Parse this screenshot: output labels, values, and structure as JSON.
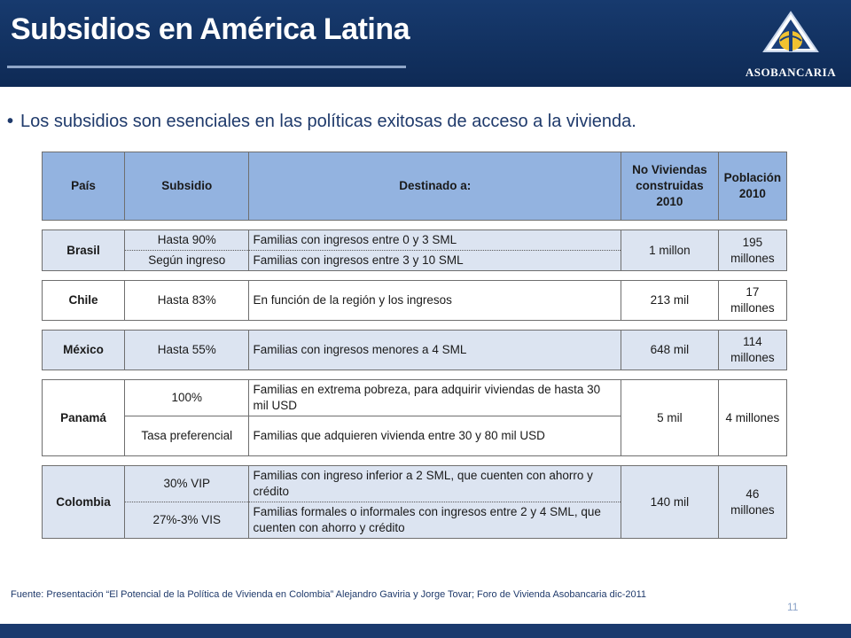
{
  "slide": {
    "title": "Subsidios en América Latina",
    "bullet": "Los subsidios son esenciales en las políticas exitosas de acceso a la vivienda.",
    "logo_text": "ASOBANCARIA",
    "source": "Fuente: Presentación “El Potencial de la Política de Vivienda en Colombia” Alejandro Gaviria y Jorge Tovar; Foro de Vivienda Asobancaria dic-2011",
    "page_number": "11"
  },
  "table": {
    "headers": [
      "País",
      "Subsidio",
      "Destinado a:",
      "No Viviendas construidas 2010",
      "Población 2010"
    ],
    "brasil": {
      "pais": "Brasil",
      "sub1": "Hasta 90%",
      "dest1": "Familias  con ingresos entre 0 y 3 SML",
      "sub2": "Según ingreso",
      "dest2": "Familias  con ingresos entre  3 y 10 SML",
      "viviendas": "1 millon",
      "poblacion": "195 millones"
    },
    "chile": {
      "pais": "Chile",
      "sub": "Hasta 83%",
      "dest": "En función de la región y los ingresos",
      "viviendas": "213 mil",
      "poblacion": "17 millones"
    },
    "mexico": {
      "pais": "México",
      "sub": "Hasta 55%",
      "dest": "Familias con ingresos menores a 4 SML",
      "viviendas": "648 mil",
      "poblacion": "114 millones"
    },
    "panama": {
      "pais": "Panamá",
      "sub1": "100%",
      "dest1": "Familias en extrema pobreza, para adquirir viviendas de hasta 30 mil USD",
      "sub2": "Tasa preferencial",
      "dest2": "Familias que adquieren vivienda entre  30 y 80 mil USD",
      "viviendas": "5 mil",
      "poblacion": "4 millones"
    },
    "colombia": {
      "pais": "Colombia",
      "sub1": "30% VIP",
      "dest1": "Familias con ingreso inferior a 2 SML, que cuenten con ahorro y crédito",
      "sub2": "27%-3% VIS",
      "dest2": "Familias formales o  informales con ingresos entre 2 y 4 SML, que cuenten con ahorro y crédito",
      "viviendas": "140 mil",
      "poblacion": "46 millones"
    }
  }
}
